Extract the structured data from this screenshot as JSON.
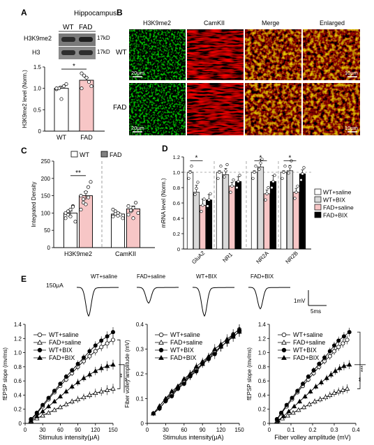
{
  "panel_labels": [
    "A",
    "B",
    "C",
    "D",
    "E"
  ],
  "panel_a": {
    "title": "Hippocampus",
    "lanes": [
      "WT",
      "FAD"
    ],
    "blots": [
      {
        "protein": "H3K9me2",
        "size": "17kD"
      },
      {
        "protein": "H3",
        "size": "17kD"
      }
    ],
    "sig": "*"
  },
  "panel_b": {
    "columns": [
      "H3K9me2",
      "CamKII",
      "Merge",
      "Enlarged"
    ],
    "rows": [
      "WT",
      "FAD"
    ],
    "scalebars": {
      "main": "20μm",
      "enlarged": "10μm"
    },
    "colors": {
      "green": "#1fa23c",
      "red": "#d01a1a"
    }
  },
  "panel_c_legend": [
    "WT",
    "FAD"
  ],
  "panel_d_legend": [
    "WT+saline",
    "WT+BIX",
    "FAD+saline",
    "FAD+BIX"
  ],
  "panel_e": {
    "stim": "150μA",
    "trace_labels": [
      "WT+saline",
      "FAD+saline",
      "WT+BIX",
      "FAD+BIX"
    ],
    "scalebar_v": "1mV",
    "scalebar_h": "5ms",
    "legend": [
      "WT+saline",
      "FAD+saline",
      "WT+BIX",
      "FAD+BIX"
    ],
    "sig_1": "**",
    "sig_2": "**",
    "sig_3": "***",
    "sig_4": "**",
    "sig_5": "***"
  },
  "chart_data": [
    {
      "id": "A-bar",
      "type": "bar",
      "categories": [
        "WT",
        "FAD"
      ],
      "values": [
        1.0,
        1.19
      ],
      "errors": [
        0.05,
        0.06
      ],
      "points": [
        [
          0.98,
          1.0,
          0.75,
          1.05,
          1.1,
          1.0
        ],
        [
          1.0,
          1.3,
          1.25,
          1.15,
          1.05,
          1.35
        ]
      ],
      "ylabel": "H3K9me2 level (Norm.)",
      "ylim": [
        0,
        1.5
      ],
      "yticks": [
        0,
        0.5,
        1.0,
        1.5
      ],
      "colors": [
        "#ffffff",
        "#f7c6c6"
      ]
    },
    {
      "id": "C-bar",
      "type": "bar",
      "groups": [
        "H3K9me2",
        "CamKII"
      ],
      "series": [
        {
          "name": "WT",
          "values": [
            100,
            97
          ],
          "errors": [
            6,
            5
          ]
        },
        {
          "name": "FAD",
          "values": [
            150,
            112
          ],
          "errors": [
            12,
            8
          ]
        }
      ],
      "points": {
        "WT": [
          [
            85,
            95,
            110,
            120,
            75,
            100,
            105,
            90,
            118
          ],
          [
            90,
            105,
            100,
            95,
            85,
            110,
            98,
            92
          ]
        ],
        "FAD": [
          [
            110,
            140,
            160,
            175,
            190,
            150,
            130,
            125,
            145
          ],
          [
            95,
            105,
            115,
            130,
            100,
            120,
            108,
            85
          ]
        ]
      },
      "ylabel": "Integrated Density",
      "ylim": [
        0,
        250
      ],
      "yticks": [
        0,
        50,
        100,
        150,
        200,
        250
      ],
      "sig": "**"
    },
    {
      "id": "D-bar",
      "type": "bar",
      "categories": [
        "GluA2",
        "NR1",
        "NR2A",
        "NR2B"
      ],
      "series": [
        {
          "name": "WT+saline",
          "values": [
            1.0,
            1.0,
            1.0,
            1.0
          ],
          "errors": [
            0.02,
            0.02,
            0.02,
            0.02
          ]
        },
        {
          "name": "WT+BIX",
          "values": [
            0.74,
            0.97,
            1.07,
            1.02
          ],
          "errors": [
            0.09,
            0.08,
            0.1,
            0.07
          ]
        },
        {
          "name": "FAD+saline",
          "values": [
            0.57,
            0.82,
            0.72,
            0.74
          ],
          "errors": [
            0.08,
            0.05,
            0.05,
            0.05
          ]
        },
        {
          "name": "FAD+BIX",
          "values": [
            0.64,
            0.88,
            0.88,
            0.98
          ],
          "errors": [
            0.07,
            0.06,
            0.08,
            0.05
          ]
        }
      ],
      "ylabel": "mRNA level (Norm.)",
      "ylim": [
        0,
        1.2
      ],
      "yticks": [
        0,
        0.2,
        0.4,
        0.6,
        0.8,
        1.0,
        1.2
      ],
      "sig_markers": [
        "*",
        "*",
        "*"
      ],
      "colors": [
        "#ffffff",
        "#d9d9d9",
        "#f7c6c6",
        "#000000"
      ]
    },
    {
      "id": "E1",
      "type": "line",
      "x": [
        10,
        20,
        30,
        40,
        50,
        60,
        70,
        80,
        90,
        100,
        110,
        120,
        130,
        140,
        150
      ],
      "series": [
        {
          "name": "WT+saline",
          "values": [
            0.05,
            0.14,
            0.24,
            0.34,
            0.44,
            0.53,
            0.62,
            0.71,
            0.8,
            0.88,
            0.95,
            1.02,
            1.08,
            1.13,
            1.18
          ]
        },
        {
          "name": "FAD+saline",
          "values": [
            0.03,
            0.07,
            0.11,
            0.15,
            0.19,
            0.23,
            0.27,
            0.31,
            0.34,
            0.37,
            0.4,
            0.43,
            0.45,
            0.47,
            0.49
          ]
        },
        {
          "name": "WT+BIX",
          "values": [
            0.06,
            0.15,
            0.26,
            0.36,
            0.46,
            0.56,
            0.66,
            0.75,
            0.84,
            0.93,
            1.02,
            1.1,
            1.17,
            1.23,
            1.29
          ]
        },
        {
          "name": "FAD+BIX",
          "values": [
            0.04,
            0.1,
            0.17,
            0.24,
            0.31,
            0.38,
            0.45,
            0.52,
            0.58,
            0.64,
            0.69,
            0.74,
            0.78,
            0.81,
            0.83
          ]
        }
      ],
      "errors": [
        0.02,
        0.02,
        0.02,
        0.03,
        0.03,
        0.03,
        0.04,
        0.04,
        0.05,
        0.05,
        0.05,
        0.06,
        0.06,
        0.07,
        0.07
      ],
      "xlabel": "Stimulus intensity(μA)",
      "ylabel": "fEPSP slope (mv/ms)",
      "xlim": [
        0,
        150
      ],
      "ylim": [
        0,
        1.4
      ],
      "xticks": [
        0,
        30,
        60,
        90,
        120,
        150
      ],
      "yticks": [
        0,
        0.2,
        0.4,
        0.6,
        0.8,
        1.0,
        1.2,
        1.4
      ]
    },
    {
      "id": "E2",
      "type": "line",
      "x": [
        10,
        20,
        30,
        40,
        50,
        60,
        70,
        80,
        90,
        100,
        110,
        120,
        130,
        140,
        150
      ],
      "series": [
        {
          "name": "WT+saline",
          "values": [
            0.04,
            0.06,
            0.09,
            0.12,
            0.14,
            0.17,
            0.19,
            0.22,
            0.24,
            0.26,
            0.29,
            0.31,
            0.33,
            0.36,
            0.38
          ]
        },
        {
          "name": "FAD+saline",
          "values": [
            0.04,
            0.07,
            0.1,
            0.12,
            0.15,
            0.17,
            0.2,
            0.22,
            0.24,
            0.27,
            0.29,
            0.31,
            0.33,
            0.35,
            0.37
          ]
        },
        {
          "name": "WT+BIX",
          "values": [
            0.04,
            0.06,
            0.09,
            0.11,
            0.14,
            0.16,
            0.19,
            0.21,
            0.24,
            0.26,
            0.28,
            0.31,
            0.33,
            0.35,
            0.37
          ]
        },
        {
          "name": "FAD+BIX",
          "values": [
            0.04,
            0.07,
            0.1,
            0.13,
            0.15,
            0.18,
            0.2,
            0.23,
            0.25,
            0.27,
            0.3,
            0.32,
            0.34,
            0.36,
            0.38
          ]
        }
      ],
      "errors": [
        0.01,
        0.01,
        0.01,
        0.01,
        0.01,
        0.01,
        0.015,
        0.015,
        0.015,
        0.015,
        0.02,
        0.02,
        0.02,
        0.02,
        0.02
      ],
      "xlabel": "Stimulus intensity(μA)",
      "ylabel": "Fiber volley amplitude (mV)",
      "xlim": [
        0,
        150
      ],
      "ylim": [
        0,
        0.4
      ],
      "xticks": [
        0,
        30,
        60,
        90,
        120,
        150
      ],
      "yticks": [
        0,
        0.1,
        0.2,
        0.3,
        0.4
      ]
    },
    {
      "id": "E3",
      "type": "line",
      "series": [
        {
          "name": "WT+saline",
          "x": [
            0.035,
            0.055,
            0.08,
            0.105,
            0.13,
            0.155,
            0.18,
            0.205,
            0.23,
            0.255,
            0.28,
            0.3,
            0.32,
            0.34,
            0.36
          ],
          "y": [
            0.05,
            0.14,
            0.24,
            0.34,
            0.44,
            0.53,
            0.62,
            0.71,
            0.8,
            0.88,
            0.95,
            1.02,
            1.08,
            1.13,
            1.18
          ]
        },
        {
          "name": "FAD+saline",
          "x": [
            0.035,
            0.06,
            0.085,
            0.11,
            0.135,
            0.16,
            0.185,
            0.21,
            0.235,
            0.26,
            0.28,
            0.3,
            0.32,
            0.34,
            0.36
          ],
          "y": [
            0.03,
            0.07,
            0.11,
            0.15,
            0.19,
            0.23,
            0.27,
            0.31,
            0.34,
            0.37,
            0.4,
            0.43,
            0.45,
            0.47,
            0.49
          ]
        },
        {
          "name": "WT+BIX",
          "x": [
            0.035,
            0.055,
            0.08,
            0.105,
            0.13,
            0.155,
            0.18,
            0.205,
            0.23,
            0.255,
            0.28,
            0.3,
            0.32,
            0.345,
            0.37
          ],
          "y": [
            0.06,
            0.15,
            0.26,
            0.36,
            0.46,
            0.56,
            0.66,
            0.75,
            0.84,
            0.93,
            1.02,
            1.1,
            1.17,
            1.23,
            1.29
          ]
        },
        {
          "name": "FAD+BIX",
          "x": [
            0.04,
            0.065,
            0.09,
            0.115,
            0.14,
            0.165,
            0.19,
            0.215,
            0.24,
            0.265,
            0.285,
            0.305,
            0.325,
            0.345,
            0.37
          ],
          "y": [
            0.04,
            0.1,
            0.17,
            0.24,
            0.31,
            0.38,
            0.45,
            0.52,
            0.58,
            0.64,
            0.69,
            0.74,
            0.78,
            0.81,
            0.83
          ]
        }
      ],
      "xlabel": "Fiber volley amplitude (mV)",
      "ylabel": "fEPSP slope (mv/ms)",
      "xlim": [
        0,
        0.4
      ],
      "ylim": [
        0,
        1.4
      ],
      "xticks": [
        0,
        0.1,
        0.2,
        0.3,
        0.4
      ],
      "yticks": [
        0,
        0.2,
        0.4,
        0.6,
        0.8,
        1.0,
        1.2,
        1.4
      ]
    }
  ]
}
